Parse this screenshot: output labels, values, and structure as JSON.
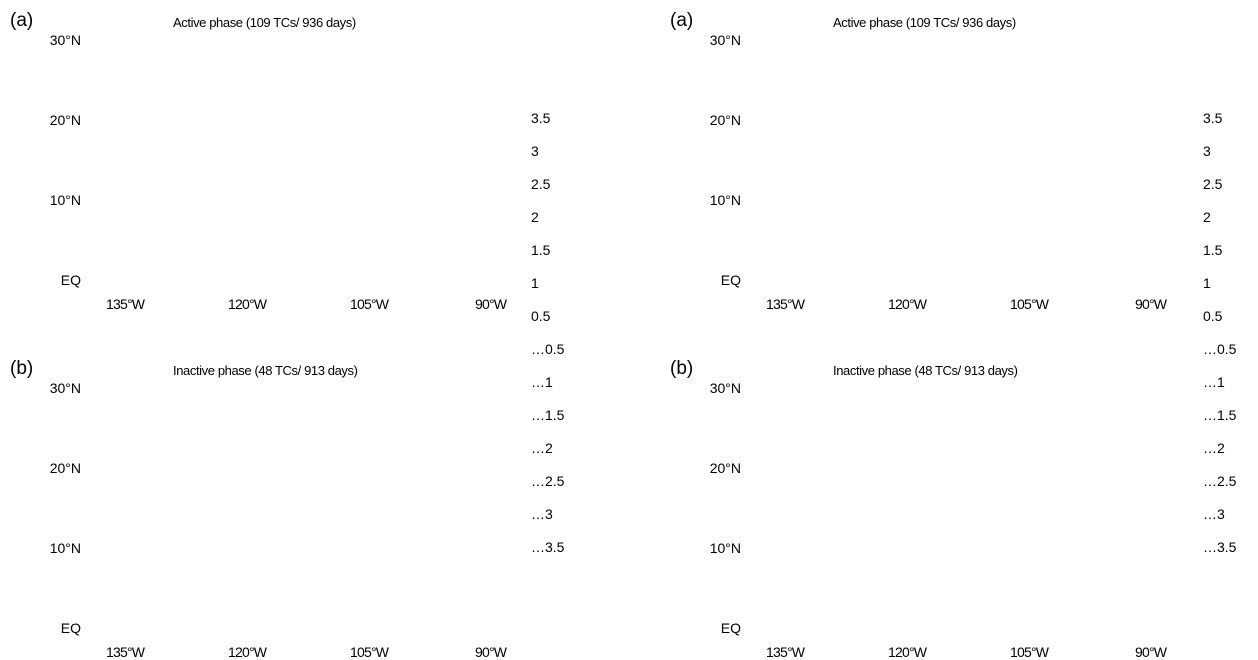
{
  "chart_data": [
    {
      "type": "heatmap",
      "panel_label": "(a)",
      "title": "Active phase (109 TCs/ 936 days)",
      "y_ticks": [
        "30°N",
        "20°N",
        "10°N",
        "EQ"
      ],
      "x_ticks": [
        "135°W",
        "120°W",
        "105°W",
        "90°W"
      ],
      "colorbar": [
        "3.5",
        "3",
        "2.5",
        "2",
        "1.5",
        "1",
        "0.5",
        "…0.5",
        "…1",
        "…1.5",
        "…2",
        "…2.5",
        "…3",
        "…3.5"
      ]
    },
    {
      "type": "heatmap",
      "panel_label": "(b)",
      "title": "Inactive phase (48 TCs/ 913 days)",
      "y_ticks": [
        "30°N",
        "20°N",
        "10°N",
        "EQ"
      ],
      "x_ticks": [
        "135°W",
        "120°W",
        "105°W",
        "90°W"
      ],
      "colorbar": null
    },
    {
      "type": "heatmap",
      "panel_label": "(a)",
      "title": "Active phase (109 TCs/ 936 days)",
      "y_ticks": [
        "30°N",
        "20°N",
        "10°N",
        "EQ"
      ],
      "x_ticks": [
        "135°W",
        "120°W",
        "105°W",
        "90°W"
      ],
      "colorbar": [
        "3.5",
        "3",
        "2.5",
        "2",
        "1.5",
        "1",
        "0.5",
        "…0.5",
        "…1",
        "…1.5",
        "…2",
        "…2.5",
        "…3",
        "…3.5"
      ]
    },
    {
      "type": "heatmap",
      "panel_label": "(b)",
      "title": "Inactive phase (48 TCs/ 913 days)",
      "y_ticks": [
        "30°N",
        "20°N",
        "10°N",
        "EQ"
      ],
      "x_ticks": [
        "135°W",
        "120°W",
        "105°W",
        "90°W"
      ],
      "colorbar": null
    }
  ]
}
